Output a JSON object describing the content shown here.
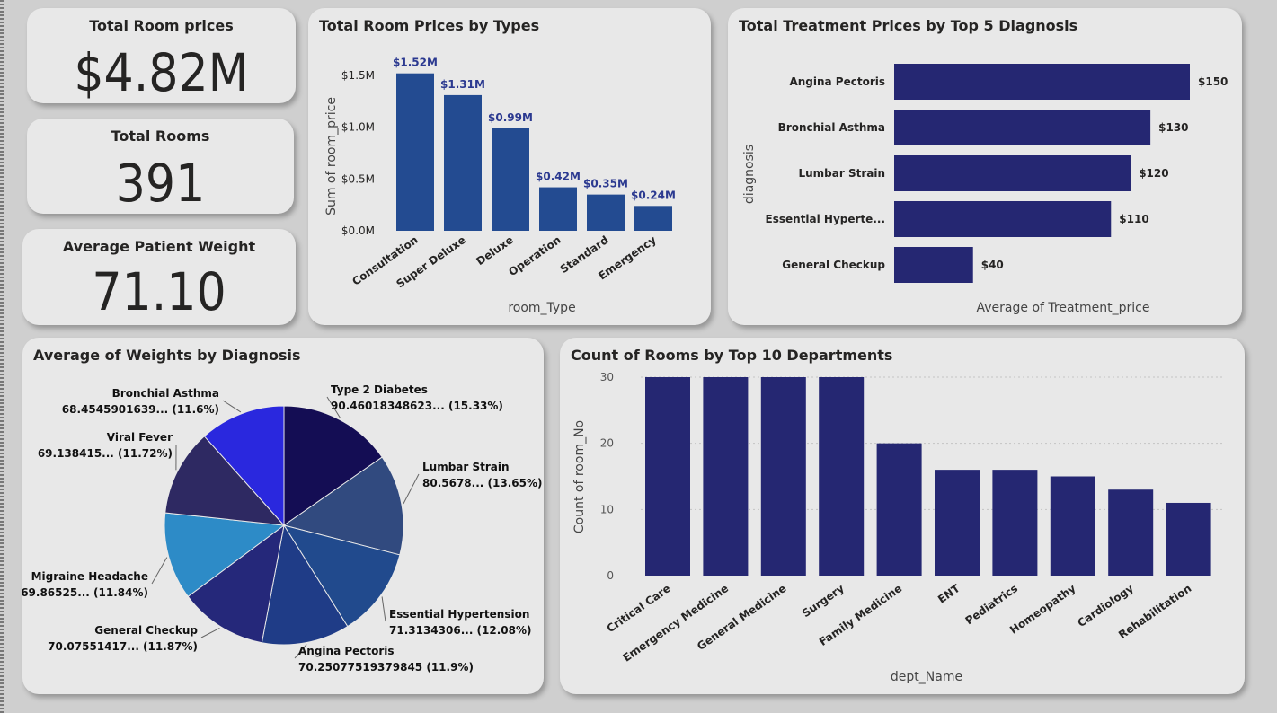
{
  "kpis": {
    "room_prices": {
      "title": "Total Room prices",
      "value": "$4.82M"
    },
    "rooms": {
      "title": "Total Rooms",
      "value": "391"
    },
    "weight": {
      "title": "Average Patient Weight",
      "value": "71.10"
    }
  },
  "colors": {
    "room_bar": "#234b91",
    "room_label": "#2b3990",
    "navy_bar": "#252772",
    "pie": [
      "#140d54",
      "#314a7f",
      "#214a8d",
      "#1f3c87",
      "#25287a",
      "#2d8bc7",
      "#2e2962",
      "#2a28de"
    ]
  },
  "chart_data": [
    {
      "type": "bar",
      "title": "Total Room Prices by Types",
      "xlabel": "room_Type",
      "ylabel": "Sum of room_price",
      "categories": [
        "Consultation",
        "Super Deluxe",
        "Deluxe",
        "Operation",
        "Standard",
        "Emergency"
      ],
      "values": [
        1.52,
        1.31,
        0.99,
        0.42,
        0.35,
        0.24
      ],
      "data_labels": [
        "$1.52M",
        "$1.31M",
        "$0.99M",
        "$0.42M",
        "$0.35M",
        "$0.24M"
      ],
      "yticks": [
        "$0.0M",
        "$0.5M",
        "$1.0M",
        "$1.5M"
      ],
      "ytick_values": [
        0,
        0.5,
        1.0,
        1.5
      ],
      "ylim": [
        0,
        1.6
      ]
    },
    {
      "type": "bar",
      "orientation": "horizontal",
      "title": "Total Treatment Prices by Top 5 Diagnosis",
      "xlabel": "Average of Treatment_price",
      "ylabel": "diagnosis",
      "categories": [
        "Angina Pectoris",
        "Bronchial Asthma",
        "Lumbar Strain",
        "Essential Hyperte...",
        "General Checkup"
      ],
      "values": [
        150,
        130,
        120,
        110,
        40
      ],
      "data_labels": [
        "$150",
        "$130",
        "$120",
        "$110",
        "$40"
      ],
      "xlim": [
        0,
        150
      ]
    },
    {
      "type": "pie",
      "title": "Average of Weights by Diagnosis",
      "slices": [
        {
          "name": "Type 2 Diabetes",
          "value_label": "90.46018348623... (15.33%)",
          "percent": 15.33
        },
        {
          "name": "Lumbar Strain",
          "value_label": "80.5678... (13.65%)",
          "percent": 13.65
        },
        {
          "name": "Essential Hypertension",
          "value_label": "71.3134306... (12.08%)",
          "percent": 12.08
        },
        {
          "name": "Angina Pectoris",
          "value_label": "70.25077519379845 (11.9%)",
          "percent": 11.9
        },
        {
          "name": "General Checkup",
          "value_label": "70.07551417... (11.87%)",
          "percent": 11.87
        },
        {
          "name": "Migraine Headache",
          "value_label": "69.86525... (11.84%)",
          "percent": 11.84
        },
        {
          "name": "Viral Fever",
          "value_label": "69.138415... (11.72%)",
          "percent": 11.72
        },
        {
          "name": "Bronchial Asthma",
          "value_label": "68.4545901639... (11.6%)",
          "percent": 11.6
        }
      ]
    },
    {
      "type": "bar",
      "title": "Count of Rooms by Top 10 Departments",
      "xlabel": "dept_Name",
      "ylabel": "Count of room_No",
      "categories": [
        "Critical Care",
        "Emergency Medicine",
        "General Medicine",
        "Surgery",
        "Family Medicine",
        "ENT",
        "Pediatrics",
        "Homeopathy",
        "Cardiology",
        "Rehabilitation"
      ],
      "values": [
        30,
        30,
        30,
        30,
        20,
        16,
        16,
        15,
        13,
        11
      ],
      "yticks": [
        "0",
        "10",
        "20",
        "30"
      ],
      "ytick_values": [
        0,
        10,
        20,
        30
      ],
      "ylim": [
        0,
        30
      ],
      "grid": true
    }
  ]
}
